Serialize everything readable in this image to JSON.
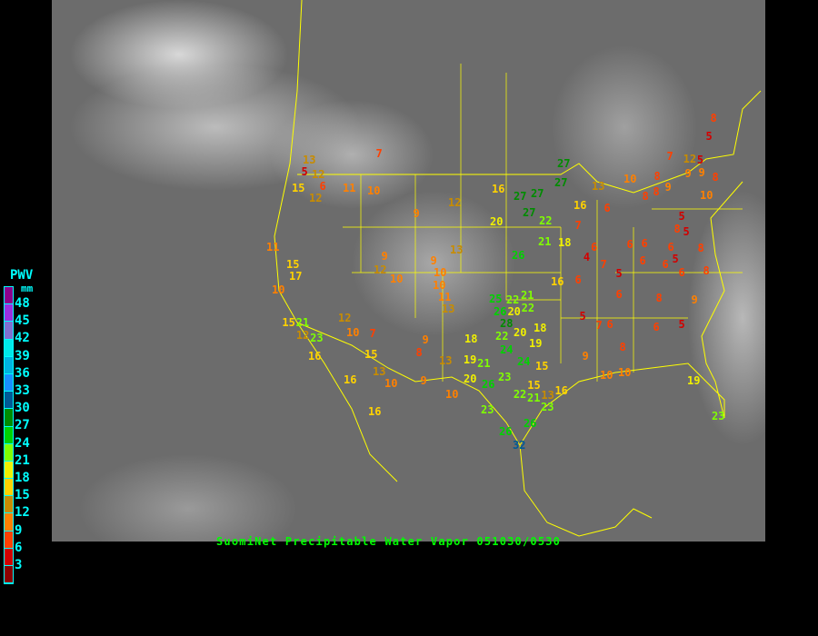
{
  "title": "SuomiNet Precipitable Water Vapor 051030/0530",
  "legend": {
    "title": "PWV",
    "unit": "mm",
    "labels": [
      "48",
      "45",
      "42",
      "39",
      "36",
      "33",
      "30",
      "27",
      "24",
      "21",
      "18",
      "15",
      "12",
      "9",
      "6",
      "3"
    ],
    "colors_top_to_bottom": [
      "#8c008c",
      "#9a30e0",
      "#8070d0",
      "#00e8e8",
      "#00b4e0",
      "#1890ff",
      "#005a96",
      "#008c00",
      "#00d200",
      "#80ff00",
      "#f0f000",
      "#ffd200",
      "#c88c00",
      "#ff8000",
      "#ff4000",
      "#d20000",
      "#8c0000"
    ]
  },
  "stations": [
    "7",
    "13",
    "5",
    "12",
    "6",
    "15",
    "12",
    "11",
    "10",
    "9",
    "12",
    "16",
    "27",
    "27",
    "27",
    "27",
    "27",
    "22",
    "20",
    "21",
    "18",
    "26",
    "13",
    "11",
    "15",
    "17",
    "10",
    "9",
    "12",
    "10",
    "9",
    "10",
    "10",
    "11",
    "13",
    "25",
    "22",
    "21",
    "22",
    "26",
    "28",
    "20",
    "22",
    "20",
    "18",
    "18",
    "24",
    "19",
    "24",
    "15",
    "19",
    "21",
    "20",
    "26",
    "23",
    "15",
    "22",
    "21",
    "13",
    "16",
    "23",
    "23",
    "26",
    "26",
    "32",
    "15",
    "21",
    "12",
    "23",
    "16",
    "12",
    "10",
    "7",
    "15",
    "9",
    "8",
    "13",
    "13",
    "10",
    "9",
    "16",
    "10",
    "16",
    "16",
    "6",
    "7",
    "6",
    "4",
    "7",
    "5",
    "6",
    "6",
    "6",
    "16",
    "13",
    "10",
    "8",
    "7",
    "8",
    "8",
    "9",
    "9",
    "9",
    "12",
    "5",
    "8",
    "5",
    "8",
    "10",
    "5",
    "8",
    "5",
    "8",
    "6",
    "6",
    "5",
    "6",
    "8",
    "6",
    "6",
    "8",
    "9",
    "5",
    "6",
    "5",
    "6",
    "7",
    "9",
    "8",
    "10",
    "10",
    "19",
    "23"
  ]
}
